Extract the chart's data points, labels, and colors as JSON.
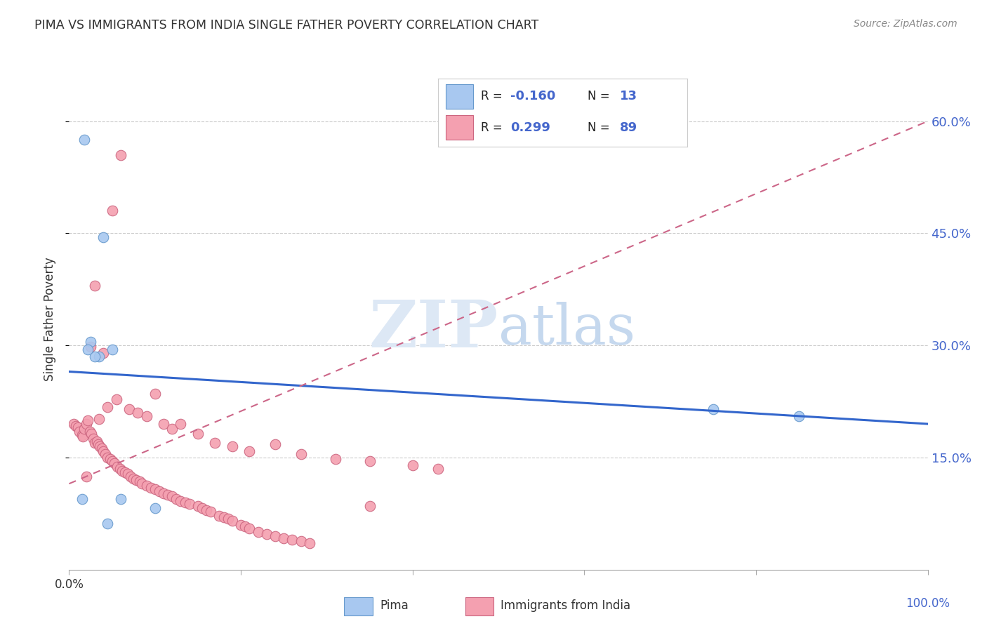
{
  "title": "PIMA VS IMMIGRANTS FROM INDIA SINGLE FATHER POVERTY CORRELATION CHART",
  "source": "Source: ZipAtlas.com",
  "ylabel": "Single Father Poverty",
  "y_ticks": [
    0.15,
    0.3,
    0.45,
    0.6
  ],
  "y_tick_labels": [
    "15.0%",
    "30.0%",
    "45.0%",
    "60.0%"
  ],
  "pima_color": "#a8c8f0",
  "india_color": "#f4a0b0",
  "pima_edge": "#6699cc",
  "india_edge": "#cc6680",
  "pima_R": -0.16,
  "pima_N": 13,
  "india_R": 0.299,
  "india_N": 89,
  "legend_R_color": "#4466cc",
  "watermark_zip": "ZIP",
  "watermark_atlas": "atlas",
  "pima_x": [
    0.018,
    0.04,
    0.05,
    0.035,
    0.03,
    0.025,
    0.022,
    0.015,
    0.06,
    0.75,
    0.85,
    0.1,
    0.045
  ],
  "pima_y": [
    0.575,
    0.445,
    0.295,
    0.285,
    0.285,
    0.305,
    0.295,
    0.095,
    0.095,
    0.215,
    0.205,
    0.082,
    0.062
  ],
  "india_x": [
    0.005,
    0.008,
    0.01,
    0.012,
    0.015,
    0.016,
    0.018,
    0.02,
    0.022,
    0.024,
    0.026,
    0.028,
    0.03,
    0.032,
    0.034,
    0.036,
    0.038,
    0.04,
    0.042,
    0.045,
    0.048,
    0.05,
    0.053,
    0.056,
    0.059,
    0.062,
    0.065,
    0.068,
    0.072,
    0.075,
    0.078,
    0.082,
    0.085,
    0.09,
    0.095,
    0.1,
    0.105,
    0.11,
    0.115,
    0.12,
    0.125,
    0.13,
    0.135,
    0.14,
    0.15,
    0.155,
    0.16,
    0.165,
    0.175,
    0.18,
    0.185,
    0.19,
    0.2,
    0.205,
    0.21,
    0.22,
    0.23,
    0.24,
    0.25,
    0.26,
    0.27,
    0.28,
    0.03,
    0.04,
    0.05,
    0.06,
    0.035,
    0.025,
    0.045,
    0.055,
    0.07,
    0.08,
    0.09,
    0.1,
    0.11,
    0.12,
    0.13,
    0.15,
    0.17,
    0.19,
    0.21,
    0.24,
    0.27,
    0.31,
    0.35,
    0.4,
    0.43,
    0.35,
    0.02
  ],
  "india_y": [
    0.195,
    0.192,
    0.19,
    0.185,
    0.18,
    0.178,
    0.188,
    0.195,
    0.2,
    0.185,
    0.182,
    0.175,
    0.17,
    0.172,
    0.168,
    0.165,
    0.162,
    0.158,
    0.155,
    0.15,
    0.148,
    0.145,
    0.142,
    0.138,
    0.135,
    0.132,
    0.13,
    0.128,
    0.125,
    0.122,
    0.12,
    0.118,
    0.115,
    0.112,
    0.11,
    0.108,
    0.105,
    0.102,
    0.1,
    0.098,
    0.095,
    0.092,
    0.09,
    0.088,
    0.085,
    0.082,
    0.08,
    0.078,
    0.072,
    0.07,
    0.068,
    0.065,
    0.06,
    0.058,
    0.055,
    0.05,
    0.048,
    0.045,
    0.042,
    0.04,
    0.038,
    0.035,
    0.38,
    0.29,
    0.48,
    0.555,
    0.202,
    0.298,
    0.218,
    0.228,
    0.215,
    0.21,
    0.205,
    0.235,
    0.195,
    0.188,
    0.195,
    0.182,
    0.17,
    0.165,
    0.158,
    0.168,
    0.155,
    0.148,
    0.145,
    0.14,
    0.135,
    0.085,
    0.125
  ],
  "pima_line_y0": 0.265,
  "pima_line_y1": 0.195,
  "india_line_y0": 0.115,
  "india_line_y1": 0.6,
  "bg_color": "#ffffff",
  "grid_color": "#cccccc",
  "title_color": "#333333",
  "axis_color": "#333333",
  "tick_label_color": "#4466cc",
  "xlim": [
    0.0,
    1.0
  ],
  "ylim": [
    0.0,
    0.67
  ]
}
